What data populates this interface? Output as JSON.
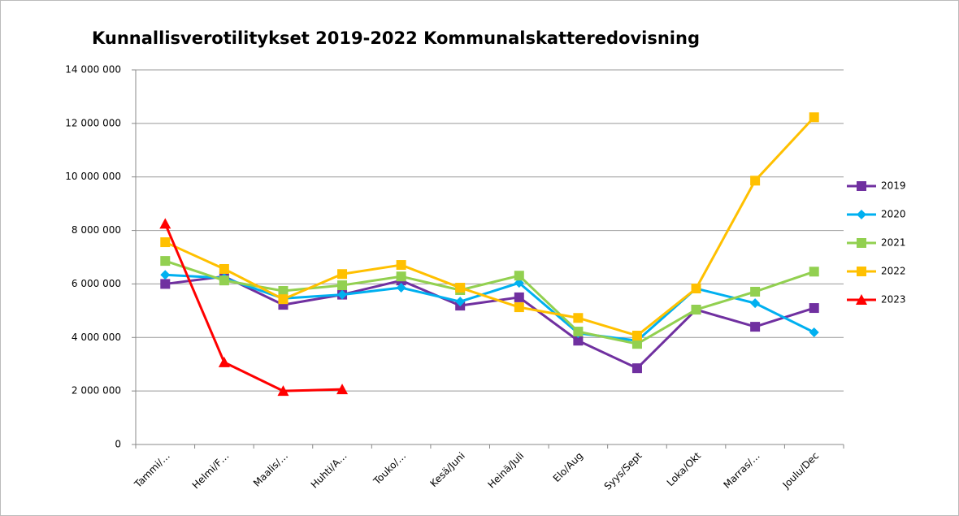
{
  "chart_data": {
    "type": "line",
    "title": "Kunnallisverotilitykset 2019-2022 Kommunalskatteredovisning",
    "categories": [
      "Tammi/…",
      "Helmi/F…",
      "Maalis/…",
      "Huhti/A…",
      "Touko/…",
      "Kesä/Juni",
      "Heinä/Juli",
      "Elo/Aug",
      "Syys/Sept",
      "Loka/Okt",
      "Marras/…",
      "Joulu/Dec"
    ],
    "series": [
      {
        "name": "2019",
        "color": "#7030a0",
        "marker": "square",
        "values": [
          6000000,
          6280000,
          5220000,
          5600000,
          6130000,
          5190000,
          5500000,
          3880000,
          2850000,
          5040000,
          4400000,
          5100000
        ]
      },
      {
        "name": "2020",
        "color": "#00b0f0",
        "marker": "diamond",
        "values": [
          6340000,
          6220000,
          5460000,
          5600000,
          5860000,
          5340000,
          6040000,
          4160000,
          3880000,
          5830000,
          5280000,
          4190000
        ]
      },
      {
        "name": "2021",
        "color": "#92d050",
        "marker": "square",
        "values": [
          6860000,
          6130000,
          5740000,
          5950000,
          6280000,
          5770000,
          6310000,
          4220000,
          3760000,
          5040000,
          5710000,
          6460000
        ]
      },
      {
        "name": "2022",
        "color": "#ffc000",
        "marker": "square",
        "values": [
          7560000,
          6560000,
          5430000,
          6370000,
          6710000,
          5860000,
          5130000,
          4730000,
          4070000,
          5830000,
          9860000,
          12230000
        ]
      },
      {
        "name": "2023",
        "color": "#ff0000",
        "marker": "triangle",
        "values": [
          8250000,
          3070000,
          2000000,
          2060000,
          null,
          null,
          null,
          null,
          null,
          null,
          null,
          null
        ]
      }
    ],
    "ylim": [
      0,
      14000000
    ],
    "yticks": [
      0,
      {
        "value": 2000000,
        "label": "2 000 000"
      },
      {
        "value": 4000000,
        "label": "4 000 000"
      },
      {
        "value": 6000000,
        "label": "6 000 000"
      },
      {
        "value": 8000000,
        "label": "8 000 000"
      },
      {
        "value": 10000000,
        "label": "10 000 000"
      },
      {
        "value": 12000000,
        "label": "12 000 000"
      },
      {
        "value": 14000000,
        "label": "14 000 000"
      }
    ],
    "grid": true,
    "legend": "right"
  }
}
